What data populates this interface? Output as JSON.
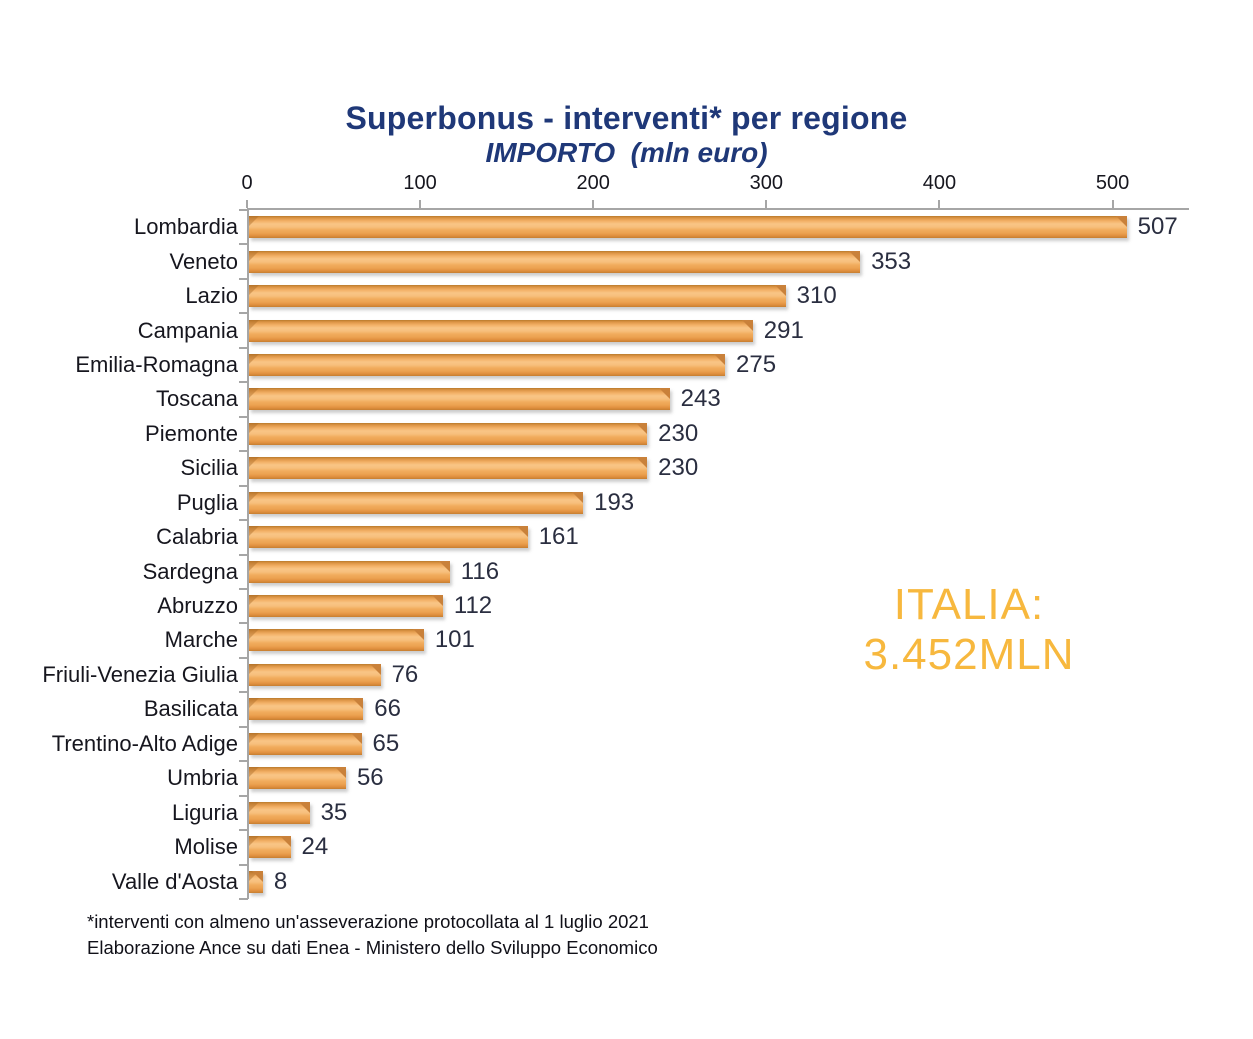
{
  "title": "Superbonus - interventi* per regione",
  "subtitle": "IMPORTO  (mln euro)",
  "annotation": {
    "line1": "ITALIA:",
    "line2": "3.452MLN",
    "color": "#f7b83e"
  },
  "footnote": {
    "line1": "*interventi con almeno un'asseverazione protocollata al 1 luglio 2021",
    "line2": "Elaborazione Ance su dati Enea - Ministero dello Sviluppo Economico"
  },
  "chart_data": {
    "type": "bar",
    "orientation": "horizontal",
    "title": "Superbonus - interventi* per regione",
    "subtitle": "IMPORTO (mln euro)",
    "categories": [
      "Lombardia",
      "Veneto",
      "Lazio",
      "Campania",
      "Emilia-Romagna",
      "Toscana",
      "Piemonte",
      "Sicilia",
      "Puglia",
      "Calabria",
      "Sardegna",
      "Abruzzo",
      "Marche",
      "Friuli-Venezia Giulia",
      "Basilicata",
      "Trentino-Alto Adige",
      "Umbria",
      "Liguria",
      "Molise",
      "Valle d'Aosta"
    ],
    "values": [
      507,
      353,
      310,
      291,
      275,
      243,
      230,
      230,
      193,
      161,
      116,
      112,
      101,
      76,
      66,
      65,
      56,
      35,
      24,
      8
    ],
    "x_ticks": [
      0,
      100,
      200,
      300,
      400,
      500
    ],
    "xlim": [
      0,
      543
    ],
    "grid": false,
    "legend": false,
    "value_labels": true,
    "bar_color": "#f0a858",
    "bar_bevel_color": "#c9813a",
    "axis_color": "#a6a6a6",
    "label_color": "#16161e",
    "title_color": "#1f3878",
    "total_label": "ITALIA: 3.452MLN"
  }
}
